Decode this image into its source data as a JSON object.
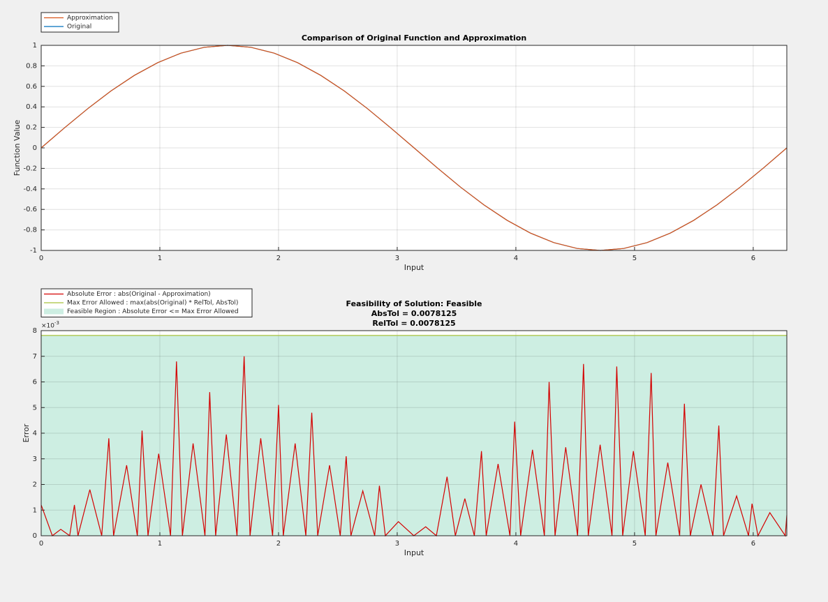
{
  "chart_data": [
    {
      "type": "line",
      "title": "Comparison of Original Function and Approximation",
      "xlabel": "Input",
      "ylabel": "Function Value",
      "x": [
        0,
        0.196,
        0.393,
        0.589,
        0.785,
        0.982,
        1.178,
        1.374,
        1.571,
        1.767,
        1.963,
        2.16,
        2.356,
        2.553,
        2.749,
        2.945,
        3.142,
        3.338,
        3.534,
        3.731,
        3.927,
        4.123,
        4.32,
        4.516,
        4.712,
        4.909,
        5.105,
        5.301,
        5.498,
        5.694,
        5.89,
        6.087,
        6.283
      ],
      "series": [
        {
          "name": "Approximation",
          "color": "#d95319",
          "values": [
            0,
            0.195,
            0.383,
            0.556,
            0.707,
            0.831,
            0.924,
            0.981,
            1,
            0.981,
            0.924,
            0.831,
            0.707,
            0.556,
            0.383,
            0.195,
            0,
            -0.195,
            -0.383,
            -0.556,
            -0.707,
            -0.831,
            -0.924,
            -0.981,
            -1,
            -0.981,
            -0.924,
            -0.831,
            -0.707,
            -0.556,
            -0.383,
            -0.195,
            0
          ]
        },
        {
          "name": "Original",
          "color": "#0072bd",
          "values": [
            0,
            0.195,
            0.383,
            0.556,
            0.707,
            0.831,
            0.924,
            0.981,
            1,
            0.981,
            0.924,
            0.831,
            0.707,
            0.556,
            0.383,
            0.195,
            0,
            -0.195,
            -0.383,
            -0.556,
            -0.707,
            -0.831,
            -0.924,
            -0.981,
            -1,
            -0.981,
            -0.924,
            -0.831,
            -0.707,
            -0.556,
            -0.383,
            -0.195,
            0
          ]
        }
      ],
      "xlim": [
        0,
        6.283
      ],
      "xticks": [
        0,
        1,
        2,
        3,
        4,
        5,
        6
      ],
      "ylim": [
        -1,
        1
      ],
      "yticks": [
        -1,
        -0.8,
        -0.6,
        -0.4,
        -0.2,
        0,
        0.2,
        0.4,
        0.6,
        0.8,
        1
      ],
      "grid": true,
      "legend": "outside-top-left"
    },
    {
      "type": "line",
      "title": [
        "Feasibility of Solution: Feasible",
        "AbsTol = 0.0078125",
        "RelTol = 0.0078125"
      ],
      "xlabel": "Input",
      "ylabel": "Error",
      "y_multiplier": {
        "base": "×10",
        "exponent": "-3"
      },
      "series": [
        {
          "name": "Absolute Error : abs(Original - Approximation)",
          "color": "#d40000",
          "x": [
            0,
            0.094,
            0.165,
            0.24,
            0.28,
            0.31,
            0.41,
            0.51,
            0.57,
            0.61,
            0.72,
            0.81,
            0.85,
            0.9,
            0.99,
            1.09,
            1.14,
            1.19,
            1.28,
            1.38,
            1.42,
            1.47,
            1.56,
            1.65,
            1.71,
            1.76,
            1.85,
            1.95,
            2.0,
            2.04,
            2.14,
            2.23,
            2.28,
            2.33,
            2.43,
            2.52,
            2.57,
            2.61,
            2.71,
            2.81,
            2.85,
            2.9,
            3.01,
            3.14,
            3.24,
            3.33,
            3.42,
            3.49,
            3.57,
            3.65,
            3.71,
            3.75,
            3.85,
            3.95,
            3.99,
            4.04,
            4.14,
            4.24,
            4.28,
            4.33,
            4.42,
            4.52,
            4.57,
            4.61,
            4.71,
            4.81,
            4.85,
            4.9,
            4.99,
            5.09,
            5.14,
            5.18,
            5.28,
            5.38,
            5.42,
            5.47,
            5.56,
            5.66,
            5.71,
            5.75,
            5.86,
            5.96,
            5.99,
            6.04,
            6.14,
            6.27,
            6.283
          ],
          "values": [
            0.0012,
            0,
            0.00025,
            0,
            0.0012,
            0,
            0.0018,
            0,
            0.0038,
            0,
            0.00275,
            0,
            0.0041,
            0,
            0.0032,
            0,
            0.0068,
            0,
            0.0036,
            0,
            0.0056,
            0,
            0.00395,
            0,
            0.007,
            0,
            0.0038,
            0,
            0.0051,
            0,
            0.0036,
            0,
            0.0048,
            0,
            0.00275,
            0,
            0.0031,
            0,
            0.00175,
            0,
            0.00195,
            0,
            0.00055,
            0,
            0.00035,
            0,
            0.0023,
            0,
            0.00145,
            0,
            0.0033,
            0,
            0.0028,
            0,
            0.00445,
            0,
            0.00335,
            0,
            0.006,
            0,
            0.00345,
            0,
            0.0067,
            0,
            0.00355,
            0,
            0.0066,
            0,
            0.0033,
            0,
            0.00635,
            0,
            0.00285,
            0,
            0.00515,
            0,
            0.002,
            0,
            0.0043,
            0,
            0.00155,
            0,
            0.00125,
            0,
            0.0009,
            0,
            0.0008
          ]
        },
        {
          "name": "Max Error Allowed : max(abs(Original) * RelTol, AbsTol)",
          "color": "#a8c23a",
          "x": [
            0,
            6.283
          ],
          "values": [
            0.0078125,
            0.0078125
          ]
        },
        {
          "name": "Feasible Region : Absolute Error <= Max Error Allowed",
          "color": "#cdeee2",
          "style": "area",
          "x": [
            0,
            6.283
          ],
          "values": [
            0.0078125,
            0.0078125
          ]
        }
      ],
      "xlim": [
        0,
        6.283
      ],
      "xticks": [
        0,
        1,
        2,
        3,
        4,
        5,
        6
      ],
      "ylim": [
        0,
        0.008
      ],
      "yticks": [
        0,
        {
          "value": 0.001,
          "label": "1"
        },
        {
          "value": 0.002,
          "label": "2"
        },
        {
          "value": 0.003,
          "label": "3"
        },
        {
          "value": 0.004,
          "label": "4"
        },
        {
          "value": 0.005,
          "label": "5"
        },
        {
          "value": 0.006,
          "label": "6"
        },
        {
          "value": 0.007,
          "label": "7"
        },
        {
          "value": 0.008,
          "label": "8"
        }
      ],
      "grid": true,
      "legend": "outside-top-left"
    }
  ]
}
